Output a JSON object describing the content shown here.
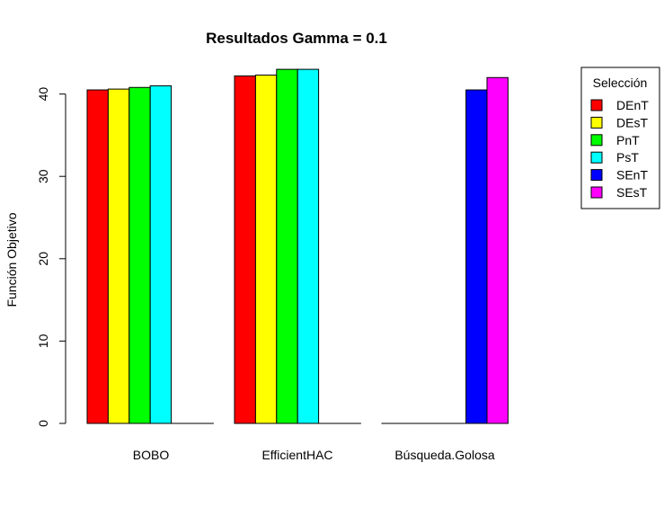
{
  "chart_data": {
    "type": "bar",
    "title": "Resultados Gamma = 0.1",
    "xlabel": "",
    "ylabel": "Función Objetivo",
    "ylim": [
      0,
      43
    ],
    "yticks": [
      0,
      10,
      20,
      30,
      40
    ],
    "grid": false,
    "legend_position": "top-right",
    "legend_title": "Selección",
    "categories": [
      "BOBO",
      "EfficientHAC",
      "Búsqueda.Golosa"
    ],
    "series": [
      {
        "name": "DEnT",
        "color": "#FF0000",
        "values": [
          40.5,
          42.2,
          0
        ]
      },
      {
        "name": "DEsT",
        "color": "#FFFF00",
        "values": [
          40.6,
          42.3,
          0
        ]
      },
      {
        "name": "PnT",
        "color": "#00FF00",
        "values": [
          40.8,
          43.0,
          0
        ]
      },
      {
        "name": "PsT",
        "color": "#00FFFF",
        "values": [
          41.0,
          43.0,
          0
        ]
      },
      {
        "name": "SEnT",
        "color": "#0000FF",
        "values": [
          0,
          0,
          40.5
        ]
      },
      {
        "name": "SEsT",
        "color": "#FF00FF",
        "values": [
          0,
          0,
          42.0
        ]
      }
    ]
  }
}
